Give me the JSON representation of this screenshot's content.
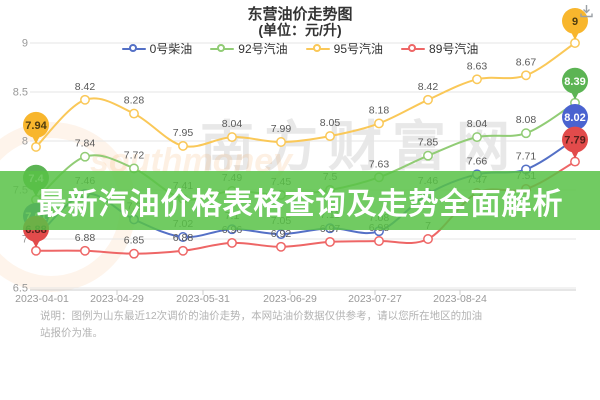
{
  "header": {
    "title": "东营油价走势图",
    "subtitle": "(单位：元/升)"
  },
  "legend": [
    {
      "label": "0号柴油",
      "color": "#5470c6"
    },
    {
      "label": "92号汽油",
      "color": "#91cc75"
    },
    {
      "label": "95号汽油",
      "color": "#fac858"
    },
    {
      "label": "89号汽油",
      "color": "#ee6666"
    }
  ],
  "overlay_banner": {
    "text": "最新汽油价格表格查询及走势全面解析",
    "bg_color": "#58c246"
  },
  "watermark": {
    "cn": "南方财富网",
    "en": "southmoney"
  },
  "note": "说明：图例为山东最近12次调价的油价走势，本网站油价数据仅供参考，请以您所在地区的加油站报价为准。",
  "toolbox": {
    "save_icon": "download-icon"
  },
  "chart_data": {
    "type": "line",
    "x_labels": [
      "2023-04-01",
      "2023-04-29",
      "2023-05-31",
      "2023-06-29",
      "2023-07-27",
      "2023-08-24"
    ],
    "ylim": [
      6.5,
      9
    ],
    "yticks": [
      "9",
      "8.5",
      "8",
      "7.5",
      "7",
      "6.5"
    ],
    "grid": true,
    "legend_position": "top",
    "series": [
      {
        "name": "95号汽油",
        "color": "#fac858",
        "values": [
          7.94,
          8.42,
          8.28,
          7.95,
          8.04,
          7.99,
          8.05,
          8.18,
          8.42,
          8.63,
          8.67,
          9
        ],
        "labels": [
          "",
          "8.42",
          "8.28",
          "7.95",
          "8.04",
          "7.99",
          "8.05",
          "8.18",
          "8.42",
          "8.63",
          "8.67",
          ""
        ],
        "start_balloon": "7.94",
        "end_balloon": "9",
        "balloon_color": "#f8b62d",
        "balloon_text_color": "#4d3b10"
      },
      {
        "name": "92号汽油",
        "color": "#91cc75",
        "values": [
          7.4,
          7.84,
          7.72,
          7.41,
          7.49,
          7.45,
          7.5,
          7.63,
          7.85,
          8.04,
          8.08,
          8.39
        ],
        "labels": [
          "",
          "7.84",
          "7.72",
          "7.41",
          "7.49",
          "7.45",
          "7.5",
          "7.63",
          "7.85",
          "8.04",
          "8.08",
          ""
        ],
        "start_balloon": "7.4",
        "end_balloon": "8.39",
        "balloon_color": "#5cb454",
        "balloon_text_color": "#ffffff"
      },
      {
        "name": "0号柴油",
        "color": "#5470c6",
        "values": [
          7.01,
          7.46,
          7.2,
          7.02,
          7.1,
          7.05,
          7.11,
          7.08,
          7.46,
          7.66,
          7.71,
          8.02
        ],
        "labels": [
          "",
          "7.46",
          "7.2",
          "7.02",
          "7.1",
          "7.05",
          "7.11",
          "7.08",
          "7.46",
          "7.66",
          "7.71",
          ""
        ],
        "start_balloon": "7.01",
        "end_balloon": "8.02",
        "balloon_color": "#4a63d0",
        "balloon_text_color": "#ffffff"
      },
      {
        "name": "89号汽油",
        "color": "#ee6666",
        "values": [
          6.88,
          6.88,
          6.85,
          6.88,
          6.96,
          6.92,
          6.97,
          6.98,
          7.0,
          7.47,
          7.51,
          7.79
        ],
        "labels": [
          "",
          "6.88",
          "6.85",
          "6.88",
          "6.96",
          "6.92",
          "6.97",
          "6.98",
          "7",
          "7.47",
          "7.51",
          ""
        ],
        "start_balloon": "6.88",
        "end_balloon": "7.79",
        "balloon_color": "#e24b4b",
        "balloon_text_color": "#54201a"
      }
    ]
  }
}
